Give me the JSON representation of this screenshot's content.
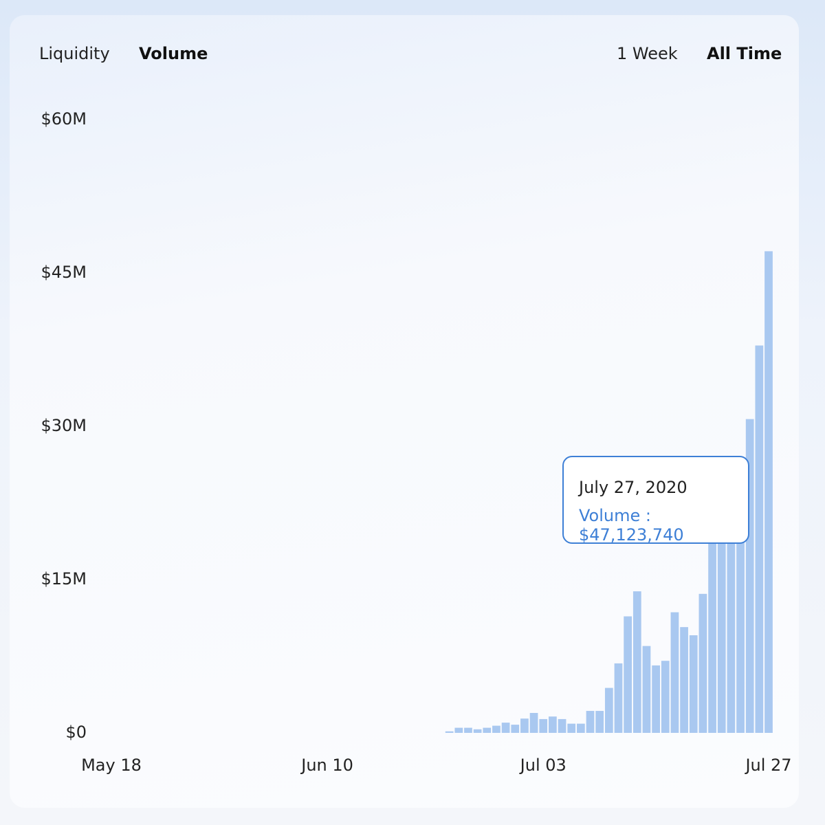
{
  "tabs": {
    "metrics": [
      "Liquidity",
      "Volume"
    ],
    "ranges": [
      "1 Week",
      "All Time"
    ]
  },
  "tooltip": {
    "date": "July 27, 2020",
    "text": "Volume : $47,123,740"
  },
  "chart_data": {
    "type": "bar",
    "categories": [
      "May 18",
      null,
      null,
      null,
      null,
      null,
      null,
      null,
      null,
      null,
      null,
      null,
      null,
      null,
      null,
      null,
      null,
      null,
      null,
      null,
      null,
      null,
      null,
      "Jun 10",
      null,
      null,
      null,
      null,
      null,
      null,
      null,
      null,
      null,
      null,
      null,
      null,
      null,
      null,
      null,
      null,
      null,
      null,
      null,
      null,
      null,
      null,
      "Jul 03",
      null,
      null,
      null,
      null,
      null,
      null,
      null,
      null,
      null,
      null,
      null,
      null,
      null,
      null,
      null,
      null,
      null,
      null,
      null,
      null,
      null,
      null,
      null,
      "Jul 27"
    ],
    "values": [
      null,
      null,
      null,
      null,
      null,
      null,
      null,
      null,
      null,
      null,
      null,
      null,
      null,
      null,
      null,
      null,
      null,
      null,
      null,
      null,
      null,
      null,
      null,
      null,
      null,
      null,
      null,
      null,
      null,
      null,
      null,
      null,
      null,
      null,
      null,
      null,
      150000,
      500000,
      500000,
      350000,
      500000,
      700000,
      1000000,
      800000,
      1400000,
      1950000,
      1350000,
      1600000,
      1350000,
      900000,
      900000,
      2150000,
      2150000,
      4400000,
      6800000,
      11400000,
      13850000,
      8500000,
      6600000,
      7050000,
      11800000,
      10350000,
      9550000,
      13600000,
      18600000,
      18900000,
      19200000,
      21900000,
      30700000,
      37900000,
      47123740
    ],
    "color": "#a9c8f0",
    "ylim": [
      0,
      60000000
    ],
    "yticks": [
      {
        "value": 0,
        "label": "$0"
      },
      {
        "value": 15000000,
        "label": "$15M"
      },
      {
        "value": 30000000,
        "label": "$30M"
      },
      {
        "value": 45000000,
        "label": "$45M"
      },
      {
        "value": 60000000,
        "label": "$60M"
      }
    ],
    "grid": false
  }
}
